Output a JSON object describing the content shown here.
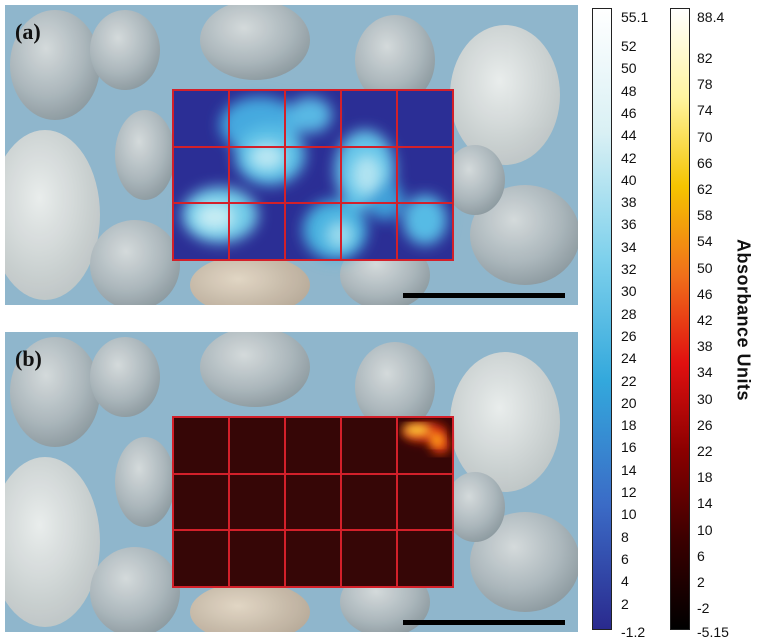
{
  "panels": [
    {
      "label": "(a)",
      "map_palette": "blue"
    },
    {
      "label": "(b)",
      "map_palette": "hot"
    }
  ],
  "colorbar_blue": {
    "max_label": "55.1",
    "min_label": "-1.2",
    "ticks": [
      "52",
      "50",
      "48",
      "46",
      "44",
      "42",
      "40",
      "38",
      "36",
      "34",
      "32",
      "30",
      "28",
      "26",
      "24",
      "22",
      "20",
      "18",
      "16",
      "14",
      "12",
      "10",
      "8",
      "6",
      "4",
      "2"
    ],
    "colors": [
      "#2a2a8e",
      "#3b6bc6",
      "#33a8dc",
      "#7fd1ec",
      "#d9f0f4",
      "#ffffff"
    ]
  },
  "colorbar_hot": {
    "max_label": "88.4",
    "min_label": "-5.15",
    "ticks": [
      "82",
      "78",
      "74",
      "70",
      "66",
      "62",
      "58",
      "54",
      "50",
      "46",
      "42",
      "38",
      "34",
      "30",
      "26",
      "22",
      "18",
      "14",
      "10",
      "6",
      "2",
      "-2"
    ],
    "colors": [
      "#000000",
      "#3a0000",
      "#8a0000",
      "#e01010",
      "#f0701a",
      "#f5c400",
      "#fff5a0",
      "#ffffff"
    ]
  },
  "axis_label": "Absorbance Units"
}
